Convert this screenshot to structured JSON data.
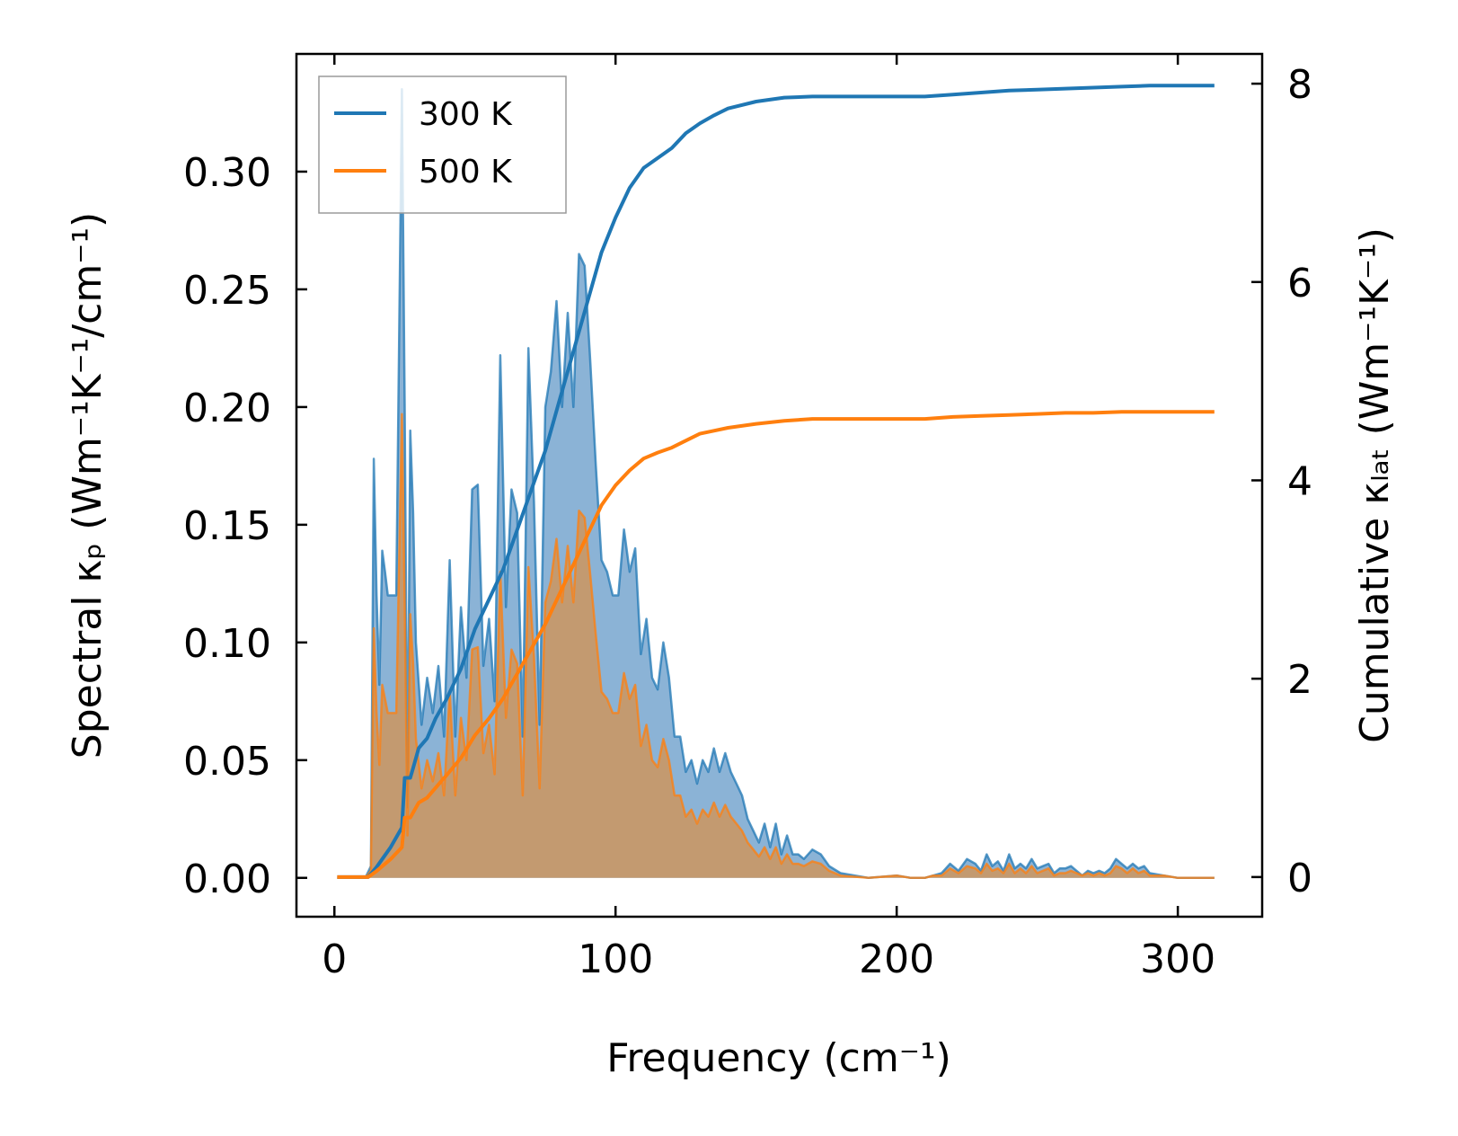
{
  "chart_data": {
    "type": "line",
    "xlabel": "Frequency (cm⁻¹)",
    "ylabel_left": "Spectral κₚ (Wm⁻¹K⁻¹/cm⁻¹)",
    "ylabel_right": "Cumulative κₗₐₜ (Wm⁻¹K⁻¹)",
    "xlim": [
      -13.5,
      330
    ],
    "ylim_left": [
      -0.0165,
      0.35
    ],
    "ylim_right": [
      -0.4,
      8.3
    ],
    "x_ticks": [
      0,
      100,
      200,
      300
    ],
    "x_tick_labels": [
      "0",
      "100",
      "200",
      "300"
    ],
    "y_left_ticks": [
      0,
      0.05,
      0.1,
      0.15,
      0.2,
      0.25,
      0.3
    ],
    "y_left_tick_labels": [
      "0.00",
      "0.05",
      "0.10",
      "0.15",
      "0.20",
      "0.25",
      "0.30"
    ],
    "y_right_ticks": [
      0,
      2,
      4,
      6,
      8
    ],
    "y_right_tick_labels": [
      "0",
      "2",
      "4",
      "6",
      "8"
    ],
    "legend": {
      "location": "upper-left",
      "entries": [
        "300 K",
        "500 K"
      ]
    },
    "colors": {
      "300K": "#1f77b4",
      "500K": "#ff7f0e",
      "fill_300K": "#8bb3d6",
      "fill_500K": "#c39a70"
    },
    "spectral_x": [
      1,
      3,
      5,
      7,
      9,
      11,
      13,
      14,
      15,
      16,
      17,
      18,
      19,
      20,
      22,
      24,
      25,
      26,
      27,
      28,
      29,
      31,
      33,
      35,
      37,
      39,
      41,
      43,
      45,
      47,
      49,
      51,
      53,
      55,
      57,
      59,
      61,
      63,
      65,
      67,
      69,
      71,
      73,
      75,
      77,
      79,
      81,
      83,
      85,
      87,
      89,
      91,
      93,
      95,
      97,
      99,
      101,
      103,
      105,
      107,
      109,
      111,
      113,
      115,
      117,
      119,
      121,
      123,
      125,
      127,
      129,
      131,
      133,
      135,
      137,
      139,
      141,
      143,
      145,
      147,
      149,
      151,
      153,
      155,
      157,
      159,
      161,
      163,
      165,
      167,
      170,
      173,
      176,
      180,
      190,
      200,
      205,
      210,
      213,
      216,
      219,
      222,
      225,
      228,
      230,
      232,
      234,
      236,
      238,
      240,
      242,
      244,
      246,
      248,
      250,
      252,
      254,
      256,
      258,
      260,
      262,
      264,
      266,
      268,
      270,
      272,
      274,
      276,
      278,
      280,
      282,
      284,
      286,
      288,
      290,
      295,
      300,
      305,
      313
    ],
    "spectral_300K": [
      0,
      0,
      0,
      0,
      0,
      0,
      0.005,
      0.178,
      0.12,
      0.082,
      0.139,
      0.13,
      0.12,
      0.12,
      0.12,
      0.335,
      0.2,
      0.03,
      0.19,
      0.155,
      0.1,
      0.065,
      0.085,
      0.07,
      0.09,
      0.06,
      0.135,
      0.06,
      0.115,
      0.085,
      0.165,
      0.167,
      0.09,
      0.11,
      0.075,
      0.222,
      0.115,
      0.165,
      0.155,
      0.06,
      0.225,
      0.16,
      0.065,
      0.2,
      0.215,
      0.245,
      0.2,
      0.24,
      0.2,
      0.265,
      0.26,
      0.22,
      0.175,
      0.135,
      0.13,
      0.12,
      0.12,
      0.148,
      0.13,
      0.14,
      0.095,
      0.11,
      0.085,
      0.08,
      0.1,
      0.085,
      0.06,
      0.06,
      0.045,
      0.05,
      0.04,
      0.05,
      0.045,
      0.055,
      0.045,
      0.053,
      0.045,
      0.04,
      0.035,
      0.025,
      0.02,
      0.015,
      0.023,
      0.013,
      0.023,
      0.01,
      0.018,
      0.01,
      0.01,
      0.008,
      0.012,
      0.01,
      0.005,
      0.002,
      0,
      0.001,
      0,
      0,
      0.001,
      0.002,
      0.006,
      0.003,
      0.008,
      0.006,
      0.003,
      0.01,
      0.005,
      0.007,
      0.003,
      0.01,
      0.004,
      0.006,
      0.004,
      0.008,
      0.004,
      0.005,
      0.006,
      0.002,
      0.004,
      0.004,
      0.005,
      0.003,
      0.001,
      0.003,
      0.002,
      0.003,
      0.002,
      0.004,
      0.008,
      0.006,
      0.004,
      0.006,
      0.004,
      0.005,
      0.002,
      0.001,
      0,
      0,
      0
    ],
    "spectral_500K": [
      0,
      0,
      0,
      0,
      0,
      0,
      0.003,
      0.106,
      0.07,
      0.048,
      0.082,
      0.076,
      0.07,
      0.07,
      0.07,
      0.197,
      0.117,
      0.018,
      0.112,
      0.091,
      0.059,
      0.038,
      0.05,
      0.041,
      0.053,
      0.035,
      0.079,
      0.035,
      0.068,
      0.05,
      0.097,
      0.098,
      0.053,
      0.065,
      0.044,
      0.13,
      0.068,
      0.097,
      0.091,
      0.035,
      0.132,
      0.094,
      0.038,
      0.117,
      0.126,
      0.144,
      0.117,
      0.141,
      0.117,
      0.156,
      0.153,
      0.129,
      0.103,
      0.079,
      0.076,
      0.07,
      0.07,
      0.087,
      0.076,
      0.082,
      0.056,
      0.065,
      0.05,
      0.047,
      0.059,
      0.05,
      0.035,
      0.035,
      0.026,
      0.029,
      0.023,
      0.029,
      0.026,
      0.032,
      0.026,
      0.031,
      0.026,
      0.023,
      0.02,
      0.015,
      0.012,
      0.009,
      0.013,
      0.008,
      0.013,
      0.006,
      0.01,
      0.006,
      0.006,
      0.005,
      0.007,
      0.006,
      0.003,
      0.001,
      0,
      0.001,
      0,
      0,
      0.001,
      0.001,
      0.004,
      0.002,
      0.005,
      0.004,
      0.002,
      0.006,
      0.003,
      0.004,
      0.002,
      0.006,
      0.002,
      0.004,
      0.002,
      0.005,
      0.002,
      0.003,
      0.004,
      0.001,
      0.002,
      0.002,
      0.003,
      0.002,
      0.001,
      0.002,
      0.001,
      0.002,
      0.001,
      0.002,
      0.005,
      0.004,
      0.002,
      0.004,
      0.002,
      0.003,
      0.001,
      0.001,
      0,
      0,
      0
    ],
    "cumulative_x": [
      1,
      12,
      15,
      20,
      24,
      25,
      27,
      28,
      30,
      33,
      36,
      40,
      45,
      50,
      55,
      60,
      65,
      70,
      75,
      80,
      85,
      90,
      95,
      100,
      105,
      110,
      115,
      120,
      125,
      130,
      135,
      140,
      150,
      160,
      170,
      180,
      190,
      200,
      210,
      220,
      230,
      240,
      250,
      260,
      270,
      280,
      290,
      300,
      313
    ],
    "cumulative_300K": [
      0,
      0,
      0.1,
      0.3,
      0.5,
      1,
      1,
      1.1,
      1.3,
      1.4,
      1.6,
      1.8,
      2.1,
      2.5,
      2.8,
      3.1,
      3.5,
      3.9,
      4.3,
      4.8,
      5.3,
      5.8,
      6.3,
      6.65,
      6.95,
      7.15,
      7.25,
      7.35,
      7.5,
      7.6,
      7.68,
      7.75,
      7.82,
      7.86,
      7.87,
      7.87,
      7.87,
      7.87,
      7.87,
      7.89,
      7.91,
      7.93,
      7.94,
      7.95,
      7.96,
      7.97,
      7.98,
      7.98,
      7.98
    ],
    "cumulative_500K": [
      0,
      0,
      0.06,
      0.18,
      0.3,
      0.6,
      0.6,
      0.65,
      0.75,
      0.8,
      0.9,
      1.03,
      1.2,
      1.43,
      1.6,
      1.8,
      2.05,
      2.3,
      2.55,
      2.85,
      3.15,
      3.45,
      3.75,
      3.95,
      4.1,
      4.22,
      4.28,
      4.33,
      4.4,
      4.47,
      4.5,
      4.53,
      4.57,
      4.6,
      4.62,
      4.62,
      4.62,
      4.62,
      4.62,
      4.64,
      4.65,
      4.66,
      4.67,
      4.68,
      4.68,
      4.69,
      4.69,
      4.69,
      4.69
    ]
  }
}
